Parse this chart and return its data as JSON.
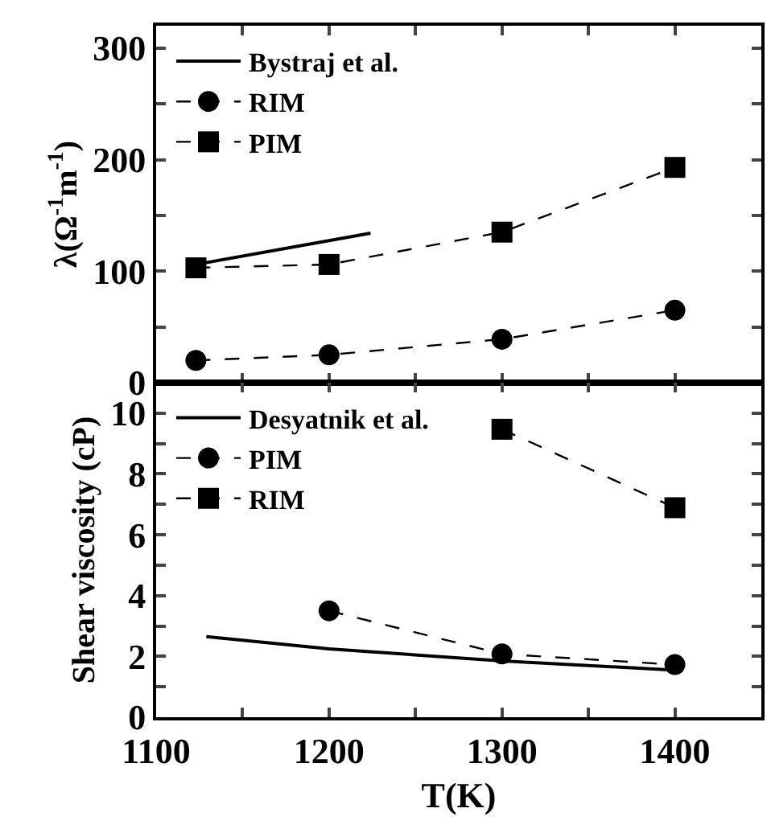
{
  "chart_data": [
    {
      "type": "line",
      "ylabel": "λ(Ω$^{-1}$m$^{-1}$)",
      "xlim": [
        1100,
        1450
      ],
      "xticks": [
        {
          "value": 1100,
          "label": null
        },
        {
          "value": 1150,
          "label": null
        },
        {
          "value": 1200,
          "label": null
        },
        {
          "value": 1250,
          "label": null
        },
        {
          "value": 1300,
          "label": null
        },
        {
          "value": 1350,
          "label": null
        },
        {
          "value": 1400,
          "label": null
        }
      ],
      "ylim": [
        0,
        320
      ],
      "yticks": [
        0,
        {
          "value": 50,
          "label": null
        },
        100,
        {
          "value": 150,
          "label": null
        },
        200,
        {
          "value": 250,
          "label": null
        },
        300
      ],
      "tick_labels": "y",
      "legend": "top left",
      "series": [
        {
          "name": "Bystraj et al.",
          "color": "#000000",
          "x": [
            1123,
            1224
          ],
          "values": [
            106,
            134
          ],
          "marker": "none",
          "line_style": "solid"
        },
        {
          "name": "RIM",
          "color": "#000000",
          "x": [
            1123,
            1200,
            1300,
            1400
          ],
          "values": [
            20,
            25,
            39,
            65
          ],
          "marker": "circle",
          "line_style": "dashed"
        },
        {
          "name": "PIM",
          "color": "#000000",
          "x": [
            1123,
            1200,
            1300,
            1400
          ],
          "values": [
            103,
            106,
            135,
            193
          ],
          "marker": "square",
          "line_style": "dashed"
        }
      ]
    },
    {
      "type": "line",
      "xlabel": "T(K)",
      "ylabel": "Shear viscosity (cP)",
      "xlim": [
        1100,
        1450
      ],
      "xticks": [
        1100,
        {
          "value": 1150,
          "label": null
        },
        1200,
        {
          "value": 1250,
          "label": null
        },
        1300,
        {
          "value": 1350,
          "label": null
        },
        1400
      ],
      "ylim": [
        0,
        11
      ],
      "yticks": [
        0,
        {
          "value": 1,
          "label": null
        },
        2,
        {
          "value": 3,
          "label": null
        },
        4,
        {
          "value": 5,
          "label": null
        },
        6,
        {
          "value": 7,
          "label": null
        },
        8,
        {
          "value": 9,
          "label": null
        },
        10
      ],
      "legend": "top left",
      "series": [
        {
          "name": "Desyatnik et al.",
          "color": "#000000",
          "x": [
            1129,
            1200,
            1300,
            1400
          ],
          "values": [
            2.65,
            2.25,
            1.85,
            1.55
          ],
          "marker": "none",
          "line_style": "solid"
        },
        {
          "name": "PIM",
          "color": "#000000",
          "x": [
            1200,
            1300,
            1400
          ],
          "values": [
            3.5,
            2.08,
            1.73
          ],
          "marker": "circle",
          "line_style": "dashed"
        },
        {
          "name": "RIM",
          "color": "#000000",
          "x": [
            1300,
            1400
          ],
          "values": [
            9.47,
            6.89
          ],
          "marker": "square",
          "line_style": "dashed"
        }
      ]
    }
  ]
}
